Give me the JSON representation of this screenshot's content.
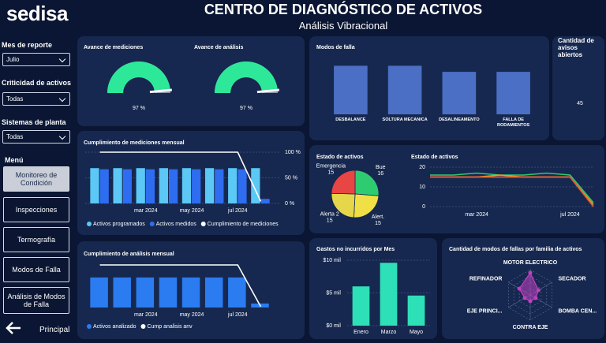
{
  "header": {
    "logo": "sedisa",
    "title": "CENTRO DE DIAGNÓSTICO DE ACTIVOS",
    "subtitle": "Análisis Vibracional"
  },
  "filters": [
    {
      "label": "Mes de reporte",
      "value": "Julio"
    },
    {
      "label": "Criticidad de activos",
      "value": "Todas"
    },
    {
      "label": "Sistemas de planta",
      "value": "Todas"
    }
  ],
  "menu": {
    "title": "Menú",
    "items": [
      "Monitoreo de Condición",
      "Inspecciones",
      "Termografía",
      "Modos de Falla",
      "Análisis de Modos de Falla"
    ],
    "back": "Principal"
  },
  "chart_data": [
    {
      "type": "gauge",
      "title": "Avance de mediciones",
      "values": [
        97
      ],
      "value_labels": [
        "97 %"
      ],
      "ylim": [
        0,
        100
      ],
      "color": "#2ee89a"
    },
    {
      "type": "gauge",
      "title": "Avance de análisis",
      "values": [
        97
      ],
      "value_labels": [
        "97 %"
      ],
      "ylim": [
        0,
        100
      ],
      "color": "#2ee89a"
    },
    {
      "type": "bar",
      "title": "Modos de falla",
      "categories": [
        "DESBALANCE",
        "SOLTURA MECANICA",
        "DESALINEAMENTO",
        "FALLA DE RODAMIENTOS"
      ],
      "values": [
        8,
        8,
        7,
        7
      ],
      "ylim": [
        0,
        10
      ],
      "color": "#4a6fc4"
    },
    {
      "type": "kpi",
      "title": "Cantidad de avisos abiertos",
      "value": 45
    },
    {
      "type": "combo",
      "title": "Cumplimiento de mediciones mensual",
      "categories": [
        null,
        null,
        "mar 2024",
        null,
        "may 2024",
        null,
        "jul 2024",
        null
      ],
      "series": [
        {
          "name": "Activos programados",
          "kind": "bar",
          "color": "#5bc8f5",
          "values": [
            62,
            62,
            62,
            62,
            62,
            62,
            62,
            62
          ]
        },
        {
          "name": "Activos medidos",
          "kind": "bar",
          "color": "#2f6df0",
          "values": [
            60,
            60,
            60,
            60,
            60,
            60,
            60,
            8
          ]
        },
        {
          "name": "Cumplimiento de mediciones",
          "kind": "line",
          "axis": "y2",
          "color": "#ffffff",
          "values": [
            100,
            100,
            100,
            100,
            100,
            100,
            100,
            4
          ]
        }
      ],
      "ylim": [
        0,
        90
      ],
      "y2lim": [
        0,
        100
      ],
      "y2ticks": [
        {
          "value": 100,
          "label": "100 %"
        },
        {
          "value": 50,
          "label": "50 %"
        },
        {
          "value": 0,
          "label": "0 %"
        }
      ]
    },
    {
      "type": "combo",
      "title": "Cumplimiento de análisis mensual",
      "categories": [
        null,
        null,
        "mar 2024",
        null,
        "may 2024",
        null,
        "jul 2024",
        null
      ],
      "series": [
        {
          "name": "Activos analizado",
          "kind": "bar",
          "color": "#2a7cf0",
          "values": [
            60,
            60,
            60,
            60,
            60,
            60,
            60,
            8
          ]
        },
        {
          "name": "Cump analisis anv",
          "kind": "line",
          "axis": "y2",
          "color": "#ffffff",
          "values": [
            100,
            100,
            100,
            100,
            100,
            100,
            100,
            2
          ]
        }
      ],
      "ylim": [
        0,
        85
      ],
      "y2lim": [
        0,
        100
      ]
    },
    {
      "type": "pie",
      "title": "Estado de activos",
      "categories": [
        "Bue",
        "Alert.",
        "Alerta 2",
        "Emergencia"
      ],
      "values": [
        16,
        15,
        15,
        15
      ],
      "colors": [
        "#2ecc71",
        "#f1e045",
        "#e6d64a",
        "#e84545"
      ]
    },
    {
      "type": "line",
      "title": "Estado de activos",
      "categories": [
        null,
        null,
        "mar 2024",
        null,
        null,
        null,
        "jul 2024",
        null
      ],
      "series": [
        {
          "color": "#2ecc71",
          "values": [
            16,
            16,
            17,
            16,
            16,
            17,
            16,
            2
          ]
        },
        {
          "color": "#f39c12",
          "values": [
            15,
            15,
            15,
            16,
            15,
            15,
            15,
            1
          ]
        },
        {
          "color": "#f1e045",
          "values": [
            15,
            15,
            15,
            15,
            15,
            15,
            15,
            0
          ]
        },
        {
          "color": "#e74c3c",
          "values": [
            15,
            15,
            15,
            15,
            15,
            15,
            15,
            0
          ]
        }
      ],
      "ylim": [
        0,
        20
      ],
      "yticks": [
        0,
        10,
        20
      ]
    },
    {
      "type": "bar",
      "title": "Gastos no incurridos por Mes",
      "categories": [
        "Enero",
        "Marzo",
        "Mayo"
      ],
      "values": [
        6000,
        9600,
        4600
      ],
      "color": "#2de0b8",
      "ylim": [
        0,
        10000
      ],
      "yticks": [
        {
          "value": 0,
          "label": "$0 mil"
        },
        {
          "value": 5000,
          "label": "$5 mil"
        },
        {
          "value": 10000,
          "label": "$10 mil"
        }
      ]
    },
    {
      "type": "radar",
      "title": "Cantidad de modos de fallas por familia de activos",
      "categories": [
        "MOTOR ELECTRICO",
        "SECADOR",
        "BOMBA CEN...",
        "CONTRA EJE",
        "EJE PRINCI...",
        "REFINADOR"
      ],
      "values": [
        3.5,
        1.5,
        1,
        1,
        1,
        2
      ],
      "ylim": [
        0,
        4
      ],
      "color": "#c23fc2"
    }
  ]
}
